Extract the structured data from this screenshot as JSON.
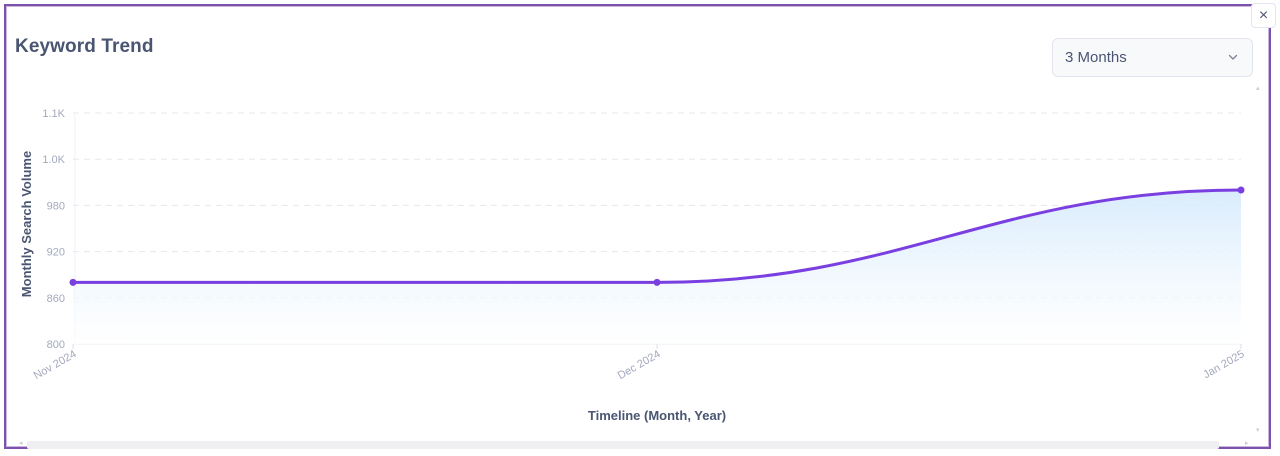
{
  "header": {
    "title": "Keyword Trend",
    "close_label": "×"
  },
  "range_select": {
    "selected": "3 Months",
    "icon": "chevron-down-icon"
  },
  "colors": {
    "frame_border": "#7d52ad",
    "line": "#7a3fe0",
    "fill_top": "#d7ebfc",
    "fill_bottom": "#ffffff",
    "grid": "#e6e8ee",
    "text_primary": "#4a5572",
    "text_muted": "#a3a9bd"
  },
  "chart_data": {
    "type": "area",
    "title": "Keyword Trend",
    "xlabel": "Timeline (Month, Year)",
    "ylabel": "Monthly Search Volume",
    "categories": [
      "Nov 2024",
      "Dec 2024",
      "Jan 2025"
    ],
    "series": [
      {
        "name": "Monthly Search Volume",
        "values": [
          880,
          880,
          1000
        ]
      }
    ],
    "yticks": [
      800,
      860,
      920,
      980,
      1040,
      1100
    ],
    "ytick_labels": [
      "800",
      "860",
      "920",
      "980",
      "1.0K",
      "1.1K"
    ],
    "ylim": [
      800,
      1100
    ],
    "grid": true,
    "curve": "smooth",
    "legend": "none"
  }
}
